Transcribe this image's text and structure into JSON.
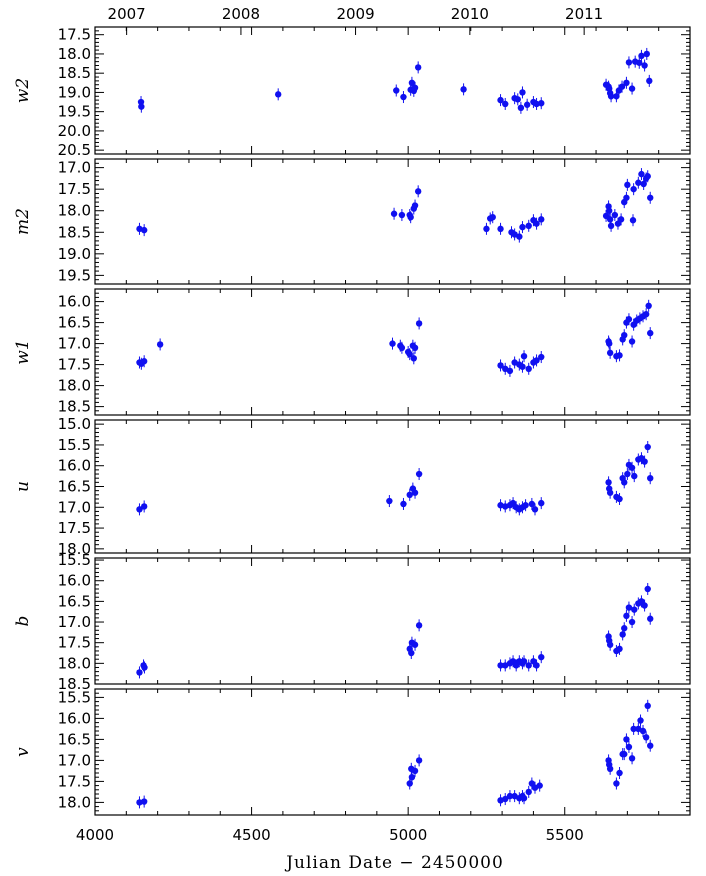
{
  "chart_data": {
    "type": "scatter",
    "marker_color": "#1010f0",
    "xlabel": "Julian Date − 2450000",
    "xlim": [
      4000,
      5900
    ],
    "x_ticks": [
      4000,
      4500,
      5000,
      5500
    ],
    "x_tick_labels": [
      "4000",
      "4500",
      "5000",
      "5500"
    ],
    "top_axis_years": [
      "2007",
      "2008",
      "2009",
      "2010",
      "2011"
    ],
    "top_axis_year_positions": [
      4101,
      4466,
      4832,
      5197,
      5562
    ],
    "panels": [
      {
        "ylabel": "w2",
        "ylim": [
          20.6,
          17.3
        ],
        "y_ticks": [
          17.5,
          18.0,
          18.5,
          19.0,
          19.5,
          20.0,
          20.5
        ],
        "y_tick_labels": [
          "17.5",
          "18.0",
          "18.5",
          "19.0",
          "19.5",
          "20.0",
          "20.5"
        ],
        "points": [
          [
            4147,
            19.25
          ],
          [
            4148,
            19.37
          ],
          [
            4585,
            19.05
          ],
          [
            4962,
            18.95
          ],
          [
            4985,
            19.12
          ],
          [
            5008,
            18.93
          ],
          [
            5012,
            18.75
          ],
          [
            5018,
            18.96
          ],
          [
            5022,
            18.88
          ],
          [
            5032,
            18.35
          ],
          [
            5177,
            18.92
          ],
          [
            5295,
            19.2
          ],
          [
            5310,
            19.3
          ],
          [
            5340,
            19.15
          ],
          [
            5350,
            19.18
          ],
          [
            5360,
            19.4
          ],
          [
            5365,
            19.0
          ],
          [
            5380,
            19.32
          ],
          [
            5400,
            19.25
          ],
          [
            5410,
            19.3
          ],
          [
            5425,
            19.28
          ],
          [
            5640,
            18.85
          ],
          [
            5642,
            18.9
          ],
          [
            5645,
            19.02
          ],
          [
            5648,
            19.1
          ],
          [
            5665,
            19.1
          ],
          [
            5673,
            18.95
          ],
          [
            5683,
            18.85
          ],
          [
            5697,
            18.75
          ],
          [
            5705,
            18.22
          ],
          [
            5715,
            18.9
          ],
          [
            5725,
            18.2
          ],
          [
            5738,
            18.23
          ],
          [
            5745,
            18.05
          ],
          [
            5755,
            18.3
          ],
          [
            5762,
            18.0
          ],
          [
            5770,
            18.7
          ],
          [
            5632,
            18.8
          ]
        ]
      },
      {
        "ylabel": "m2",
        "ylim": [
          19.7,
          16.8
        ],
        "y_ticks": [
          17.0,
          17.5,
          18.0,
          18.5,
          19.0,
          19.5
        ],
        "y_tick_labels": [
          "17.0",
          "17.5",
          "18.0",
          "18.5",
          "19.0",
          "19.5"
        ],
        "points": [
          [
            4142,
            18.42
          ],
          [
            4157,
            18.45
          ],
          [
            4955,
            18.07
          ],
          [
            4980,
            18.1
          ],
          [
            5005,
            18.1
          ],
          [
            5008,
            18.15
          ],
          [
            5018,
            17.95
          ],
          [
            5022,
            17.88
          ],
          [
            5032,
            17.55
          ],
          [
            5250,
            18.42
          ],
          [
            5262,
            18.18
          ],
          [
            5270,
            18.15
          ],
          [
            5295,
            18.42
          ],
          [
            5330,
            18.5
          ],
          [
            5340,
            18.55
          ],
          [
            5355,
            18.6
          ],
          [
            5365,
            18.38
          ],
          [
            5385,
            18.35
          ],
          [
            5400,
            18.22
          ],
          [
            5410,
            18.3
          ],
          [
            5425,
            18.2
          ],
          [
            5640,
            17.9
          ],
          [
            5642,
            18.0
          ],
          [
            5645,
            18.2
          ],
          [
            5648,
            18.35
          ],
          [
            5660,
            18.1
          ],
          [
            5670,
            18.3
          ],
          [
            5680,
            18.2
          ],
          [
            5690,
            17.8
          ],
          [
            5697,
            17.7
          ],
          [
            5700,
            17.4
          ],
          [
            5718,
            18.22
          ],
          [
            5720,
            17.5
          ],
          [
            5735,
            17.35
          ],
          [
            5745,
            17.15
          ],
          [
            5752,
            17.38
          ],
          [
            5760,
            17.25
          ],
          [
            5765,
            17.2
          ],
          [
            5773,
            17.7
          ],
          [
            5632,
            18.12
          ]
        ]
      },
      {
        "ylabel": "w1",
        "ylim": [
          18.7,
          15.7
        ],
        "y_ticks": [
          16.0,
          16.5,
          17.0,
          17.5,
          18.0,
          18.5
        ],
        "y_tick_labels": [
          "16.0",
          "16.5",
          "17.0",
          "17.5",
          "18.0",
          "18.5"
        ],
        "points": [
          [
            4142,
            17.45
          ],
          [
            4148,
            17.48
          ],
          [
            4157,
            17.42
          ],
          [
            4208,
            17.02
          ],
          [
            4950,
            17.0
          ],
          [
            4975,
            17.05
          ],
          [
            4980,
            17.1
          ],
          [
            5000,
            17.2
          ],
          [
            5005,
            17.25
          ],
          [
            5015,
            17.05
          ],
          [
            5018,
            17.35
          ],
          [
            5022,
            17.1
          ],
          [
            5035,
            16.52
          ],
          [
            5295,
            17.52
          ],
          [
            5310,
            17.6
          ],
          [
            5325,
            17.65
          ],
          [
            5340,
            17.45
          ],
          [
            5355,
            17.5
          ],
          [
            5365,
            17.55
          ],
          [
            5370,
            17.3
          ],
          [
            5385,
            17.6
          ],
          [
            5400,
            17.45
          ],
          [
            5410,
            17.4
          ],
          [
            5425,
            17.32
          ],
          [
            5640,
            16.95
          ],
          [
            5642,
            17.0
          ],
          [
            5645,
            17.22
          ],
          [
            5665,
            17.3
          ],
          [
            5675,
            17.28
          ],
          [
            5685,
            16.9
          ],
          [
            5690,
            16.8
          ],
          [
            5697,
            16.5
          ],
          [
            5705,
            16.42
          ],
          [
            5715,
            16.95
          ],
          [
            5720,
            16.55
          ],
          [
            5730,
            16.45
          ],
          [
            5740,
            16.4
          ],
          [
            5750,
            16.35
          ],
          [
            5760,
            16.3
          ],
          [
            5768,
            16.1
          ],
          [
            5773,
            16.75
          ]
        ]
      },
      {
        "ylabel": "u",
        "ylim": [
          18.1,
          14.9
        ],
        "y_ticks": [
          15.0,
          15.5,
          16.0,
          16.5,
          17.0,
          17.5,
          18.0
        ],
        "y_tick_labels": [
          "15.0",
          "15.5",
          "16.0",
          "16.5",
          "17.0",
          "17.5",
          "18.0"
        ],
        "points": [
          [
            4142,
            17.05
          ],
          [
            4157,
            16.98
          ],
          [
            4940,
            16.85
          ],
          [
            4985,
            16.92
          ],
          [
            5005,
            16.7
          ],
          [
            5015,
            16.55
          ],
          [
            5022,
            16.65
          ],
          [
            5035,
            16.2
          ],
          [
            5295,
            16.95
          ],
          [
            5310,
            16.98
          ],
          [
            5325,
            16.95
          ],
          [
            5335,
            16.9
          ],
          [
            5345,
            17.0
          ],
          [
            5355,
            17.05
          ],
          [
            5365,
            17.0
          ],
          [
            5375,
            16.95
          ],
          [
            5395,
            16.92
          ],
          [
            5405,
            17.05
          ],
          [
            5425,
            16.9
          ],
          [
            5640,
            16.4
          ],
          [
            5642,
            16.55
          ],
          [
            5645,
            16.65
          ],
          [
            5665,
            16.75
          ],
          [
            5675,
            16.8
          ],
          [
            5685,
            16.3
          ],
          [
            5690,
            16.4
          ],
          [
            5700,
            16.2
          ],
          [
            5705,
            15.98
          ],
          [
            5715,
            16.05
          ],
          [
            5722,
            16.25
          ],
          [
            5735,
            15.85
          ],
          [
            5745,
            15.82
          ],
          [
            5755,
            15.9
          ],
          [
            5765,
            15.55
          ],
          [
            5773,
            16.3
          ]
        ]
      },
      {
        "ylabel": "b",
        "ylim": [
          18.5,
          15.45
        ],
        "y_ticks": [
          15.5,
          16.0,
          16.5,
          17.0,
          17.5,
          18.0,
          18.5
        ],
        "y_tick_labels": [
          "15.5",
          "16.0",
          "16.5",
          "17.0",
          "17.5",
          "18.0",
          "18.5"
        ],
        "points": [
          [
            4142,
            18.22
          ],
          [
            4155,
            18.05
          ],
          [
            4158,
            18.1
          ],
          [
            5005,
            17.65
          ],
          [
            5010,
            17.75
          ],
          [
            5012,
            17.5
          ],
          [
            5022,
            17.55
          ],
          [
            5035,
            17.08
          ],
          [
            5295,
            18.05
          ],
          [
            5310,
            18.05
          ],
          [
            5325,
            18.0
          ],
          [
            5335,
            17.95
          ],
          [
            5345,
            18.05
          ],
          [
            5355,
            17.95
          ],
          [
            5365,
            18.0
          ],
          [
            5370,
            17.95
          ],
          [
            5385,
            18.05
          ],
          [
            5400,
            17.95
          ],
          [
            5410,
            18.05
          ],
          [
            5425,
            17.85
          ],
          [
            5640,
            17.35
          ],
          [
            5642,
            17.45
          ],
          [
            5645,
            17.55
          ],
          [
            5665,
            17.7
          ],
          [
            5675,
            17.65
          ],
          [
            5685,
            17.3
          ],
          [
            5690,
            17.15
          ],
          [
            5697,
            16.85
          ],
          [
            5705,
            16.65
          ],
          [
            5715,
            17.0
          ],
          [
            5722,
            16.7
          ],
          [
            5735,
            16.55
          ],
          [
            5745,
            16.5
          ],
          [
            5755,
            16.6
          ],
          [
            5765,
            16.2
          ],
          [
            5773,
            16.92
          ]
        ]
      },
      {
        "ylabel": "v",
        "ylim": [
          18.3,
          15.3
        ],
        "y_ticks": [
          15.5,
          16.0,
          16.5,
          17.0,
          17.5,
          18.0
        ],
        "y_tick_labels": [
          "15.5",
          "16.0",
          "16.5",
          "17.0",
          "17.5",
          "18.0"
        ],
        "points": [
          [
            4142,
            18.0
          ],
          [
            4157,
            17.98
          ],
          [
            5005,
            17.55
          ],
          [
            5010,
            17.2
          ],
          [
            5012,
            17.4
          ],
          [
            5022,
            17.25
          ],
          [
            5035,
            17.0
          ],
          [
            5295,
            17.95
          ],
          [
            5310,
            17.92
          ],
          [
            5325,
            17.85
          ],
          [
            5340,
            17.85
          ],
          [
            5355,
            17.9
          ],
          [
            5365,
            17.85
          ],
          [
            5370,
            17.9
          ],
          [
            5385,
            17.75
          ],
          [
            5395,
            17.55
          ],
          [
            5405,
            17.65
          ],
          [
            5420,
            17.6
          ],
          [
            5640,
            17.0
          ],
          [
            5642,
            17.1
          ],
          [
            5645,
            17.2
          ],
          [
            5665,
            17.55
          ],
          [
            5675,
            17.3
          ],
          [
            5685,
            16.85
          ],
          [
            5690,
            16.85
          ],
          [
            5697,
            16.5
          ],
          [
            5705,
            16.68
          ],
          [
            5715,
            16.95
          ],
          [
            5720,
            16.25
          ],
          [
            5735,
            16.25
          ],
          [
            5742,
            16.05
          ],
          [
            5750,
            16.3
          ],
          [
            5760,
            16.45
          ],
          [
            5765,
            15.7
          ],
          [
            5773,
            16.65
          ]
        ]
      }
    ]
  }
}
